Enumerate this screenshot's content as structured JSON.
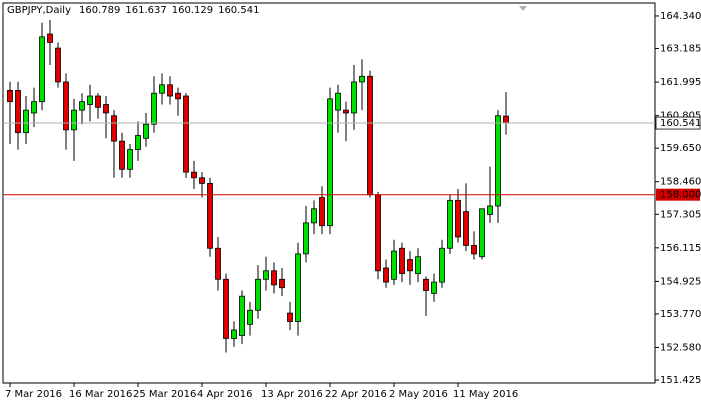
{
  "chart_data": {
    "type": "candlestick",
    "title": "GBPJPY,Daily",
    "categories": [
      "7 Mar 2016",
      null,
      null,
      null,
      null,
      null,
      null,
      null,
      "16 Mar 2016",
      null,
      null,
      null,
      null,
      null,
      null,
      null,
      "25 Mar 2016",
      null,
      null,
      null,
      null,
      null,
      null,
      null,
      "4 Apr 2016",
      null,
      null,
      null,
      null,
      null,
      null,
      null,
      "13 Apr 2016",
      null,
      null,
      null,
      null,
      null,
      null,
      null,
      "22 Apr 2016",
      null,
      null,
      null,
      null,
      null,
      null,
      null,
      "2 May 2016",
      null,
      null,
      null,
      null,
      null,
      null,
      null,
      "11 May 2016",
      null,
      null,
      null,
      null,
      null,
      null
    ],
    "open": [
      161.7,
      161.7,
      160.2,
      160.9,
      161.3,
      163.7,
      163.2,
      162.0,
      160.3,
      161.0,
      161.2,
      161.5,
      161.2,
      160.8,
      159.9,
      158.9,
      159.6,
      160.0,
      160.5,
      161.6,
      161.9,
      161.6,
      161.5,
      158.8,
      158.6,
      158.4,
      156.1,
      155.0,
      152.9,
      153.0,
      153.4,
      153.9,
      155.0,
      155.3,
      155.0,
      153.8,
      153.5,
      155.9,
      157.0,
      157.9,
      156.9,
      161.0,
      161.0,
      160.9,
      162.0,
      162.2,
      158.0,
      155.4,
      155.0,
      156.1,
      155.7,
      155.2,
      155.0,
      154.5,
      154.9,
      156.1,
      157.8,
      157.4,
      156.2,
      155.8,
      157.3,
      157.6,
      160.789
    ],
    "high": [
      162.0,
      162.0,
      161.5,
      161.8,
      164.1,
      164.2,
      163.4,
      162.3,
      161.4,
      161.6,
      161.9,
      161.6,
      161.5,
      161.0,
      160.2,
      159.8,
      160.6,
      160.9,
      162.2,
      162.3,
      162.2,
      161.8,
      161.6,
      159.2,
      158.8,
      158.6,
      156.5,
      155.2,
      153.5,
      154.6,
      154.2,
      155.5,
      155.8,
      155.6,
      155.4,
      154.2,
      156.3,
      157.6,
      157.8,
      158.3,
      161.8,
      161.9,
      161.3,
      162.6,
      162.8,
      162.4,
      158.1,
      155.7,
      156.4,
      156.3,
      156.0,
      156.1,
      155.1,
      155.2,
      156.4,
      158.0,
      158.2,
      158.4,
      156.7,
      157.5,
      159.0,
      161.0,
      161.637
    ],
    "low": [
      159.8,
      159.6,
      159.8,
      160.4,
      161.0,
      162.6,
      161.8,
      159.6,
      159.2,
      160.5,
      160.6,
      160.7,
      160.0,
      158.6,
      158.6,
      158.6,
      159.2,
      159.7,
      160.2,
      161.2,
      161.2,
      160.8,
      158.6,
      158.2,
      157.9,
      155.8,
      154.6,
      152.4,
      152.6,
      152.7,
      153.0,
      153.6,
      154.6,
      154.5,
      154.4,
      153.2,
      153.0,
      155.6,
      156.6,
      156.6,
      156.6,
      160.2,
      159.9,
      160.3,
      161.0,
      157.9,
      155.0,
      154.7,
      154.8,
      154.9,
      154.8,
      154.9,
      153.7,
      154.2,
      154.7,
      155.9,
      156.3,
      156.0,
      155.7,
      155.7,
      157.0,
      157.0,
      160.129
    ],
    "close": [
      161.3,
      160.2,
      161.0,
      161.3,
      163.6,
      163.4,
      162.0,
      160.3,
      161.0,
      161.3,
      161.5,
      161.1,
      160.9,
      159.9,
      158.9,
      159.6,
      160.1,
      160.5,
      161.6,
      161.9,
      161.5,
      161.4,
      158.8,
      158.6,
      158.4,
      156.1,
      155.0,
      152.9,
      153.2,
      154.4,
      153.9,
      155.0,
      155.3,
      154.8,
      154.7,
      153.5,
      155.9,
      157.0,
      157.5,
      156.9,
      161.4,
      161.6,
      160.9,
      162.0,
      162.2,
      158.0,
      155.3,
      154.9,
      156.0,
      155.2,
      155.3,
      155.8,
      154.6,
      154.9,
      156.1,
      157.8,
      156.5,
      156.2,
      155.9,
      157.5,
      157.6,
      160.8,
      160.541
    ],
    "up_color": "#00e000",
    "down_color": "#e00000",
    "ylim": [
      151.32,
      164.8
    ],
    "yticks": [
      {
        "value": 164.34,
        "label": "164.340"
      },
      {
        "value": 163.185,
        "label": "163.185"
      },
      {
        "value": 161.995,
        "label": "161.995"
      },
      {
        "value": 160.805,
        "label": "160.805"
      },
      {
        "value": 159.65,
        "label": "159.650"
      },
      {
        "value": 158.46,
        "label": "158.460"
      },
      {
        "value": 157.305,
        "label": "157.305"
      },
      {
        "value": 156.115,
        "label": "156.115"
      },
      {
        "value": 154.925,
        "label": "154.925"
      },
      {
        "value": 153.77,
        "label": "153.770"
      },
      {
        "value": 152.58,
        "label": "152.580"
      },
      {
        "value": 151.425,
        "label": "151.425"
      }
    ],
    "level": {
      "value": 158,
      "label": "158.000",
      "color": "#d00000"
    },
    "price_line_color": "#b0b0b0"
  }
}
